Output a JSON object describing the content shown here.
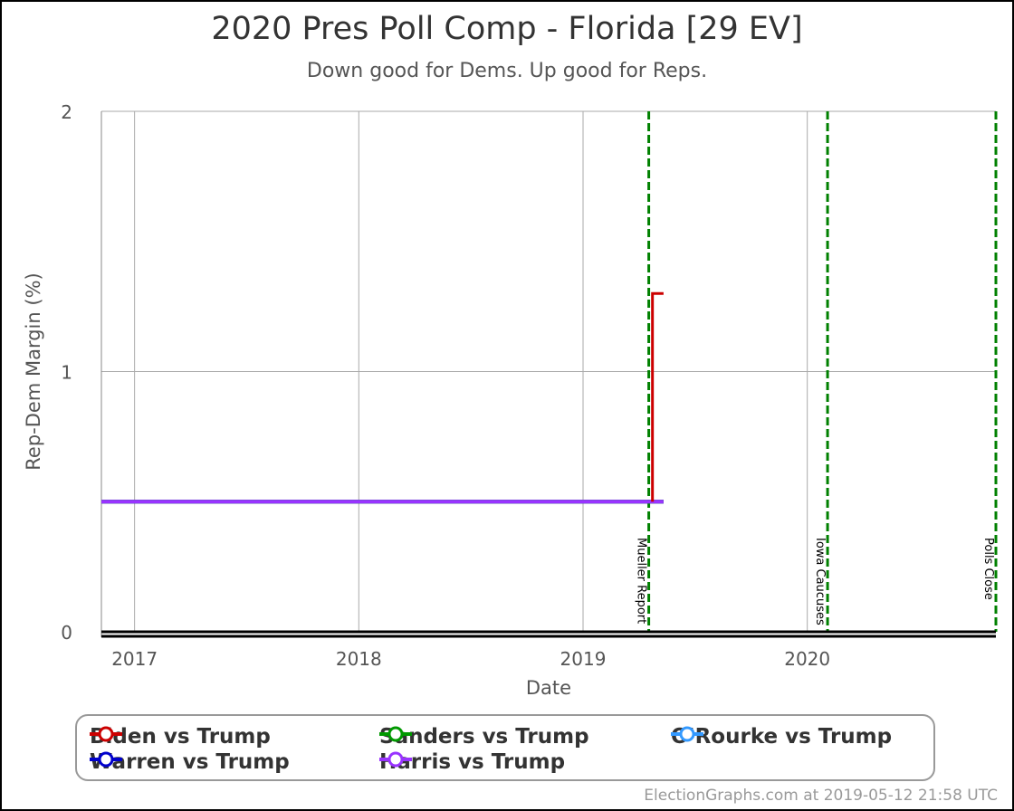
{
  "chart_data": {
    "type": "line",
    "title": "2020 Pres Poll Comp - Florida [29 EV]",
    "subtitle": "Down good for Dems. Up good for Reps.",
    "xlabel": "Date",
    "ylabel": "Rep-Dem Margin (%)",
    "xlim": [
      "2016-11-08",
      "2020-11-03"
    ],
    "ylim": [
      0,
      2
    ],
    "x_ticks": [
      "2017",
      "2018",
      "2019",
      "2020"
    ],
    "y_ticks": [
      "0",
      "1",
      "2"
    ],
    "grid": true,
    "legend_position": "bottom",
    "series": [
      {
        "name": "Biden vs Trump",
        "color": "#cc0000",
        "points": [
          {
            "x": "2019-04-24",
            "y": 0.5
          },
          {
            "x": "2019-04-24",
            "y": 1.3
          },
          {
            "x": "2019-05-12",
            "y": 1.3
          }
        ]
      },
      {
        "name": "Sanders vs Trump",
        "color": "#009900",
        "points": [
          {
            "x": "2016-11-08",
            "y": 0.5
          },
          {
            "x": "2019-05-12",
            "y": 0.5
          }
        ]
      },
      {
        "name": "O'Rourke vs Trump",
        "color": "#3399ff",
        "points": [
          {
            "x": "2016-11-08",
            "y": 0.5
          },
          {
            "x": "2019-05-12",
            "y": 0.5
          }
        ]
      },
      {
        "name": "Warren vs Trump",
        "color": "#0000cc",
        "points": [
          {
            "x": "2016-11-08",
            "y": 0.5
          },
          {
            "x": "2019-05-12",
            "y": 0.5
          }
        ]
      },
      {
        "name": "Harris vs Trump",
        "color": "#9933ff",
        "points": [
          {
            "x": "2016-11-08",
            "y": 0.5
          },
          {
            "x": "2019-05-12",
            "y": 0.5
          }
        ]
      }
    ],
    "events": [
      {
        "date": "2019-04-18",
        "label": "Mueller Report",
        "color": "#008000"
      },
      {
        "date": "2020-02-03",
        "label": "Iowa Caucuses",
        "color": "#008000"
      },
      {
        "date": "2020-11-03",
        "label": "Polls Close",
        "color": "#008000"
      }
    ],
    "legend": [
      {
        "name": "Biden vs Trump",
        "color": "#cc0000"
      },
      {
        "name": "Sanders vs Trump",
        "color": "#009900"
      },
      {
        "name": "O'Rourke vs Trump",
        "color": "#3399ff"
      },
      {
        "name": "Warren vs Trump",
        "color": "#0000cc"
      },
      {
        "name": "Harris vs Trump",
        "color": "#9933ff"
      }
    ]
  },
  "credit": "ElectionGraphs.com at 2019-05-12 21:58 UTC"
}
